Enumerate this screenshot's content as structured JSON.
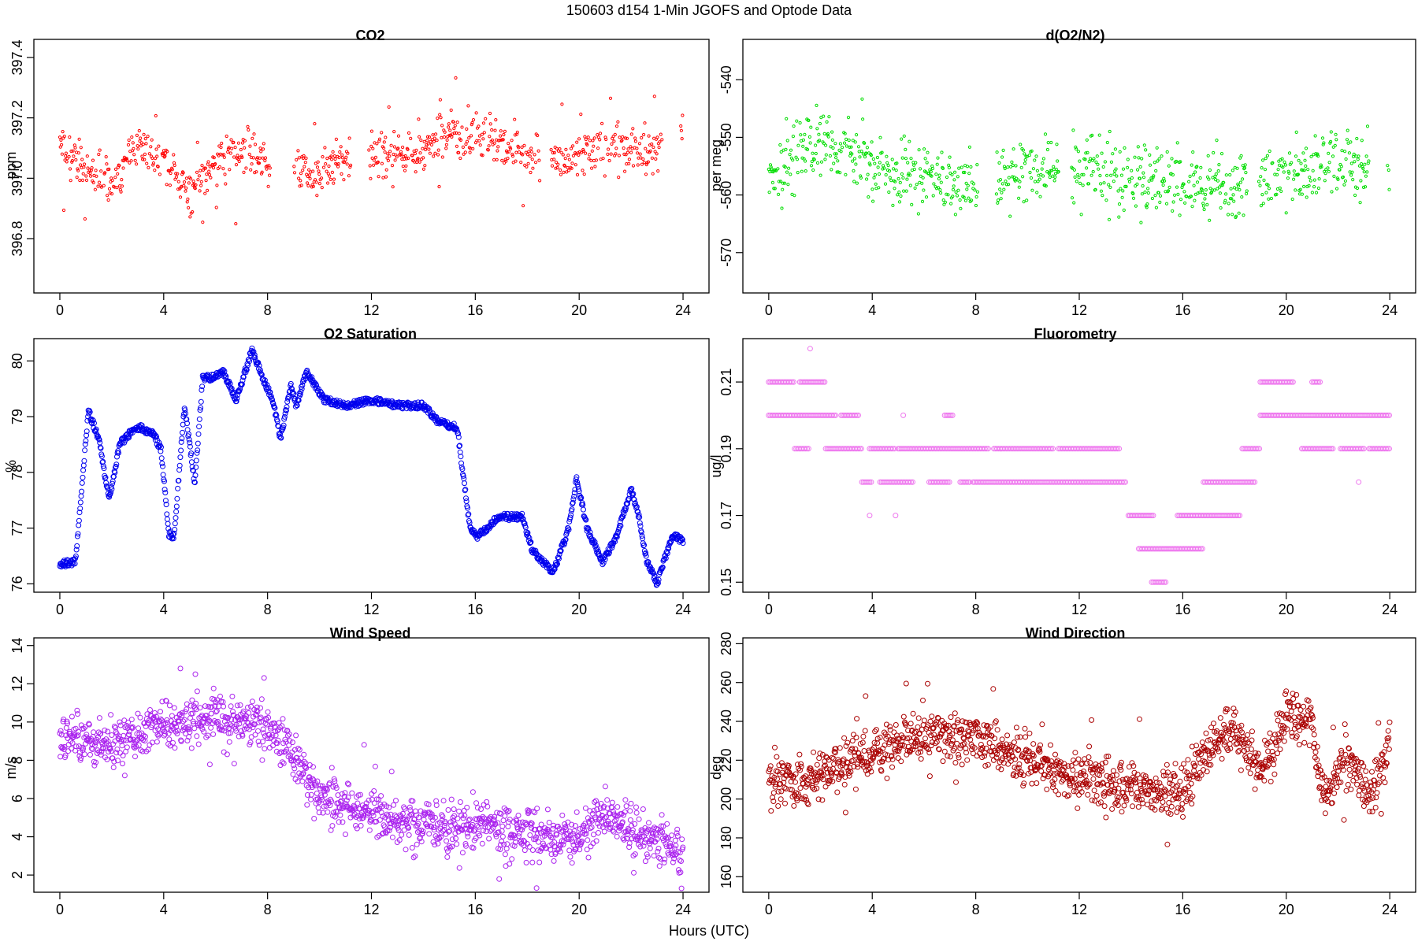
{
  "figure": {
    "title": "150603   d154   1-Min  JGOFS and Optode Data",
    "xlabel": "Hours (UTC)"
  },
  "chart_data": [
    {
      "id": "co2",
      "type": "scatter",
      "title": "CO2",
      "ylabel": "ppm",
      "color": "#ff0000",
      "marker_radius": 1.6,
      "xlim": [
        -1,
        25
      ],
      "ylim": [
        396.62,
        397.46
      ],
      "xticks": [
        0,
        4,
        8,
        12,
        16,
        20,
        24
      ],
      "yticks": [
        396.8,
        397.0,
        397.2,
        397.4
      ],
      "ytick_labels": [
        "396.8",
        "397.0",
        "397.2",
        "397.4"
      ],
      "x_range": [
        0,
        24
      ],
      "x_gaps": [
        [
          8.1,
          9.0
        ],
        [
          11.2,
          11.9
        ],
        [
          18.5,
          18.9
        ],
        [
          23.2,
          23.9
        ]
      ],
      "trend": [
        [
          0,
          397.1
        ],
        [
          2,
          396.98
        ],
        [
          3,
          397.1
        ],
        [
          4,
          397.06
        ],
        [
          5,
          396.95
        ],
        [
          6,
          397.05
        ],
        [
          7,
          397.1
        ],
        [
          8,
          397.05
        ],
        [
          10,
          397.02
        ],
        [
          11,
          397.07
        ],
        [
          12,
          397.08
        ],
        [
          13.5,
          397.08
        ],
        [
          15,
          397.14
        ],
        [
          16.5,
          397.13
        ],
        [
          18,
          397.08
        ],
        [
          19.5,
          397.05
        ],
        [
          21,
          397.12
        ],
        [
          22.5,
          397.08
        ],
        [
          24,
          397.15
        ]
      ],
      "noise": 0.07,
      "spike": 0.18
    },
    {
      "id": "o2n2",
      "type": "scatter",
      "title": "d(O2/N2)",
      "ylabel": "per meg",
      "color": "#00dd00",
      "marker_radius": 1.6,
      "xlim": [
        -1,
        25
      ],
      "ylim": [
        -577,
        -533
      ],
      "xticks": [
        0,
        4,
        8,
        12,
        16,
        20,
        24
      ],
      "yticks": [
        -540,
        -550,
        -560,
        -570
      ],
      "ytick_labels": [
        "-540",
        "-550",
        "-560",
        "-570"
      ],
      "x_range": [
        0,
        24
      ],
      "x_gaps": [
        [
          8.1,
          8.8
        ],
        [
          11.2,
          11.7
        ],
        [
          18.5,
          18.9
        ],
        [
          23.2,
          23.9
        ]
      ],
      "trend": [
        [
          0,
          -557
        ],
        [
          2,
          -551
        ],
        [
          4,
          -555
        ],
        [
          6,
          -557
        ],
        [
          8,
          -559
        ],
        [
          10,
          -556
        ],
        [
          12,
          -555
        ],
        [
          14,
          -557
        ],
        [
          16,
          -558
        ],
        [
          18,
          -559
        ],
        [
          20,
          -556
        ],
        [
          22,
          -554
        ],
        [
          24,
          -556
        ]
      ],
      "noise": 5.5,
      "spike": 9
    },
    {
      "id": "o2sat",
      "type": "scatter",
      "title": "O2 Saturation",
      "ylabel": "%",
      "color": "#0000ee",
      "marker_radius": 3,
      "xlim": [
        -1,
        25
      ],
      "ylim": [
        75.85,
        80.4
      ],
      "xticks": [
        0,
        4,
        8,
        12,
        16,
        20,
        24
      ],
      "yticks": [
        76,
        77,
        78,
        79,
        80
      ],
      "ytick_labels": [
        "76",
        "77",
        "78",
        "79",
        "80"
      ],
      "x_range": [
        0,
        24
      ],
      "x_gaps": [],
      "trend": [
        [
          0,
          76.35
        ],
        [
          0.6,
          76.4
        ],
        [
          0.8,
          77.5
        ],
        [
          1.1,
          79.1
        ],
        [
          1.5,
          78.6
        ],
        [
          1.9,
          77.5
        ],
        [
          2.3,
          78.5
        ],
        [
          2.7,
          78.7
        ],
        [
          3.1,
          78.8
        ],
        [
          3.6,
          78.7
        ],
        [
          3.9,
          78.4
        ],
        [
          4.2,
          76.9
        ],
        [
          4.4,
          76.85
        ],
        [
          4.8,
          79.2
        ],
        [
          5.2,
          77.8
        ],
        [
          5.5,
          79.7
        ],
        [
          5.9,
          79.7
        ],
        [
          6.3,
          79.8
        ],
        [
          6.8,
          79.3
        ],
        [
          7.4,
          80.2
        ],
        [
          7.9,
          79.6
        ],
        [
          8.2,
          79.3
        ],
        [
          8.5,
          78.6
        ],
        [
          8.9,
          79.6
        ],
        [
          9.1,
          79.2
        ],
        [
          9.5,
          79.8
        ],
        [
          10.2,
          79.3
        ],
        [
          11,
          79.2
        ],
        [
          12,
          79.3
        ],
        [
          13,
          79.2
        ],
        [
          14,
          79.2
        ],
        [
          14.6,
          78.9
        ],
        [
          15.3,
          78.8
        ],
        [
          15.8,
          77.0
        ],
        [
          16.1,
          76.85
        ],
        [
          16.9,
          77.2
        ],
        [
          17.8,
          77.2
        ],
        [
          18.2,
          76.6
        ],
        [
          19,
          76.2
        ],
        [
          19.6,
          77.0
        ],
        [
          19.9,
          77.9
        ],
        [
          20.3,
          77.0
        ],
        [
          20.9,
          76.4
        ],
        [
          21.4,
          76.8
        ],
        [
          22.0,
          77.7
        ],
        [
          22.3,
          77.2
        ],
        [
          22.6,
          76.4
        ],
        [
          23,
          76.0
        ],
        [
          23.6,
          76.9
        ],
        [
          24,
          76.75
        ]
      ],
      "noise": 0.06,
      "spike": 0
    },
    {
      "id": "fluoro",
      "type": "scatter",
      "title": "Fluorometry",
      "ylabel": "ug/l",
      "color": "#ee77ee",
      "marker_radius": 3,
      "xlim": [
        -1,
        25
      ],
      "ylim": [
        0.147,
        0.223
      ],
      "xticks": [
        0,
        4,
        8,
        12,
        16,
        20,
        24
      ],
      "yticks": [
        0.15,
        0.17,
        0.19,
        0.21
      ],
      "ytick_labels": [
        "0.15",
        "0.17",
        "0.19",
        "0.21"
      ],
      "x_range": [
        0,
        24
      ],
      "x_gaps": [],
      "levels": [
        {
          "y": 0.21,
          "segments": [
            [
              0,
              1.0
            ],
            [
              1.2,
              2.2
            ],
            [
              19.0,
              20.3
            ],
            [
              21.0,
              21.3
            ]
          ]
        },
        {
          "y": 0.2,
          "segments": [
            [
              0,
              2.6
            ],
            [
              2.8,
              3.5
            ],
            [
              6.8,
              7.1
            ],
            [
              19.0,
              24.0
            ]
          ]
        },
        {
          "y": 0.19,
          "segments": [
            [
              1.0,
              1.6
            ],
            [
              2.2,
              3.6
            ],
            [
              3.9,
              4.9
            ],
            [
              5.0,
              8.5
            ],
            [
              8.7,
              11.0
            ],
            [
              11.2,
              13.6
            ],
            [
              18.3,
              19.0
            ],
            [
              20.6,
              21.8
            ],
            [
              22.1,
              23.0
            ],
            [
              23.2,
              24.0
            ]
          ]
        },
        {
          "y": 0.18,
          "segments": [
            [
              3.6,
              4.0
            ],
            [
              4.3,
              5.6
            ],
            [
              6.2,
              7.0
            ],
            [
              7.4,
              7.8
            ],
            [
              7.9,
              13.8
            ],
            [
              16.8,
              18.8
            ]
          ]
        },
        {
          "y": 0.17,
          "segments": [
            [
              13.9,
              14.9
            ],
            [
              15.8,
              18.2
            ]
          ]
        },
        {
          "y": 0.16,
          "segments": [
            [
              14.3,
              16.8
            ]
          ]
        },
        {
          "y": 0.15,
          "segments": [
            [
              14.8,
              15.4
            ]
          ]
        }
      ],
      "outliers": [
        [
          1.6,
          0.22
        ],
        [
          5.2,
          0.2
        ],
        [
          3.9,
          0.17
        ],
        [
          4.9,
          0.17
        ],
        [
          22.8,
          0.18
        ]
      ]
    },
    {
      "id": "wspd",
      "type": "scatter",
      "title": "Wind Speed",
      "ylabel": "m/s",
      "color": "#aa22ee",
      "marker_radius": 3,
      "xlim": [
        -1,
        25
      ],
      "ylim": [
        1.1,
        14.4
      ],
      "xticks": [
        0,
        4,
        8,
        12,
        16,
        20,
        24
      ],
      "yticks": [
        2,
        4,
        6,
        8,
        10,
        12,
        14
      ],
      "ytick_labels": [
        "2",
        "4",
        "6",
        "8",
        "10",
        "12",
        "14"
      ],
      "x_range": [
        0,
        24
      ],
      "x_gaps": [],
      "trend": [
        [
          0,
          9.3
        ],
        [
          2,
          8.8
        ],
        [
          4,
          9.8
        ],
        [
          6,
          10.2
        ],
        [
          7.8,
          10.0
        ],
        [
          8.8,
          8.5
        ],
        [
          10,
          6.0
        ],
        [
          12,
          5.3
        ],
        [
          14,
          4.5
        ],
        [
          16,
          4.6
        ],
        [
          18,
          4.1
        ],
        [
          20,
          4.0
        ],
        [
          21,
          5.3
        ],
        [
          22.5,
          4.0
        ],
        [
          24,
          3.0
        ]
      ],
      "noise": 1.2,
      "spike": 2.2
    },
    {
      "id": "wdir",
      "type": "scatter",
      "title": "Wind Direction",
      "ylabel": "deg",
      "color": "#aa0000",
      "marker_radius": 3,
      "xlim": [
        -1,
        25
      ],
      "ylim": [
        152,
        283
      ],
      "xticks": [
        0,
        4,
        8,
        12,
        16,
        20,
        24
      ],
      "yticks": [
        160,
        180,
        200,
        220,
        240,
        260,
        280
      ],
      "ytick_labels": [
        "160",
        "180",
        "200",
        "220",
        "240",
        "260",
        "280"
      ],
      "x_range": [
        0,
        24
      ],
      "x_gaps": [],
      "trend": [
        [
          0,
          207
        ],
        [
          2,
          212
        ],
        [
          4,
          225
        ],
        [
          6,
          233
        ],
        [
          8,
          230
        ],
        [
          10,
          220
        ],
        [
          12,
          210
        ],
        [
          14,
          208
        ],
        [
          16,
          203
        ],
        [
          17,
          228
        ],
        [
          18,
          235
        ],
        [
          19,
          212
        ],
        [
          20,
          245
        ],
        [
          21,
          238
        ],
        [
          21.4,
          202
        ],
        [
          22.4,
          222
        ],
        [
          23.2,
          201
        ],
        [
          24,
          228
        ]
      ],
      "noise": 12,
      "spike": 28
    }
  ]
}
